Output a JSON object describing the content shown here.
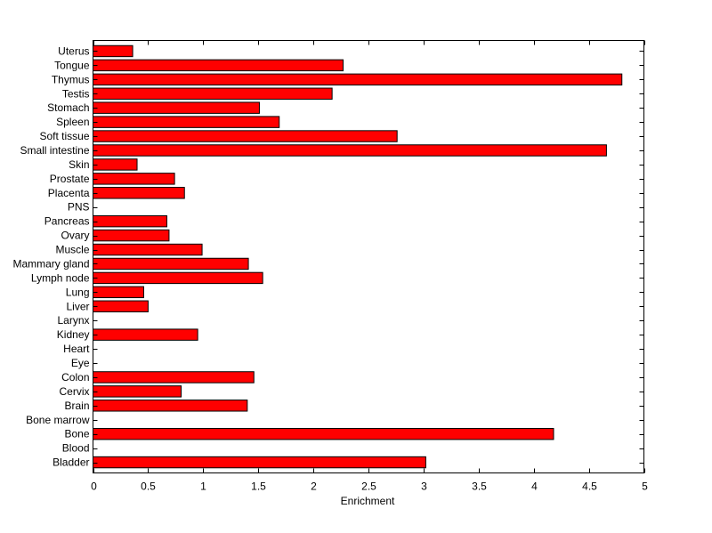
{
  "chart_data": {
    "type": "bar",
    "orientation": "horizontal",
    "title": "",
    "xlabel": "Enrichment",
    "ylabel": "",
    "xlim": [
      0,
      5
    ],
    "xticks": [
      "0",
      "0.5",
      "1",
      "1.5",
      "2",
      "2.5",
      "3",
      "3.5",
      "4",
      "4.5",
      "5"
    ],
    "grid": false,
    "bar_color": "#ff0000",
    "categories": [
      "Uterus",
      "Tongue",
      "Thymus",
      "Testis",
      "Stomach",
      "Spleen",
      "Soft tissue",
      "Small intestine",
      "Skin",
      "Prostate",
      "Placenta",
      "PNS",
      "Pancreas",
      "Ovary",
      "Muscle",
      "Mammary gland",
      "Lymph node",
      "Lung",
      "Liver",
      "Larynx",
      "Kidney",
      "Heart",
      "Eye",
      "Colon",
      "Cervix",
      "Brain",
      "Bone marrow",
      "Bone",
      "Blood",
      "Bladder"
    ],
    "values": [
      0.36,
      2.27,
      4.8,
      2.17,
      1.51,
      1.69,
      2.76,
      4.66,
      0.4,
      0.74,
      0.83,
      0,
      0.67,
      0.69,
      0.99,
      1.41,
      1.54,
      0.46,
      0.5,
      0,
      0.95,
      0,
      0,
      1.46,
      0.8,
      1.4,
      0,
      4.18,
      0,
      3.02
    ]
  }
}
